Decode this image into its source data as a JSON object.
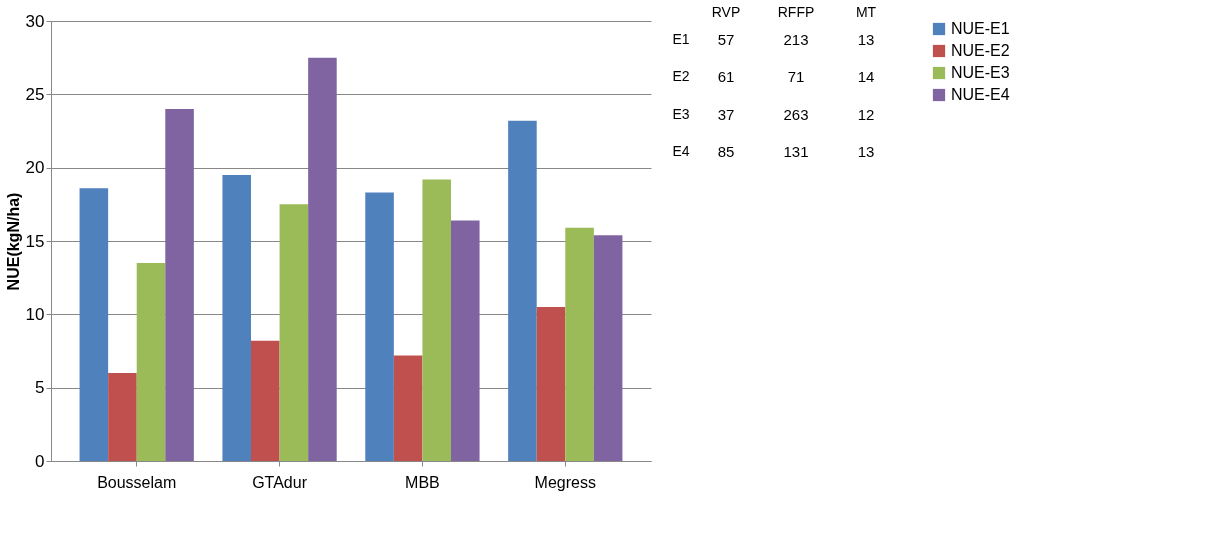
{
  "chart_data": [
    {
      "type": "bar",
      "ylabel": "NUE(kgN/ha)",
      "categories": [
        "Bousselam",
        "GTAdur",
        "MBB",
        "Megress"
      ],
      "series": [
        {
          "name": "NUE-E1",
          "color": "#4f81bd",
          "values": [
            18.6,
            19.5,
            18.3,
            23.2
          ]
        },
        {
          "name": "NUE-E2",
          "color": "#c0504d",
          "values": [
            6.0,
            8.2,
            7.2,
            10.5
          ]
        },
        {
          "name": "NUE-E3",
          "color": "#9bbb59",
          "values": [
            13.5,
            17.5,
            19.2,
            15.9
          ]
        },
        {
          "name": "NUE-E4",
          "color": "#8064a2",
          "values": [
            24.0,
            27.5,
            16.4,
            15.4
          ]
        }
      ],
      "ylim": [
        0,
        30
      ],
      "yticks": [
        0,
        5,
        10,
        15,
        20,
        25,
        30
      ],
      "grid": "y",
      "legend": "right"
    },
    {
      "type": "heatmap",
      "categories": [
        "RVP",
        "RFFP",
        "MT"
      ],
      "y_categories": [
        "E1",
        "E2",
        "E3",
        "E4"
      ],
      "cells": [
        [
          57,
          213,
          13
        ],
        [
          61,
          71,
          14
        ],
        [
          37,
          263,
          12
        ],
        [
          85,
          131,
          13
        ]
      ],
      "data_labels": true
    }
  ]
}
